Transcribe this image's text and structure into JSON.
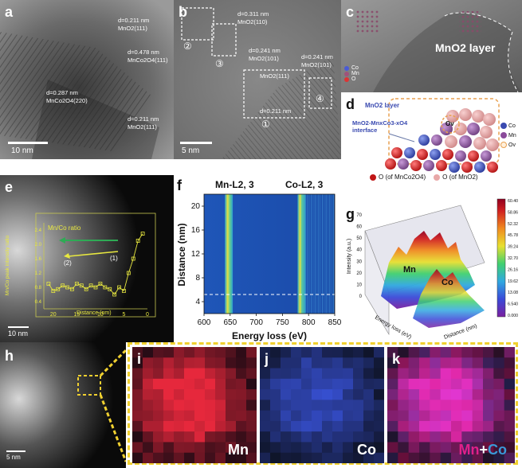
{
  "panels": {
    "a": {
      "label": "a",
      "scale": "10 nm",
      "annotations": [
        "d=0.211 nm",
        "MnO2(111)",
        "d=0.478 nm",
        "MnCo2O4(111)",
        "d=0.287 nm",
        "MnCo2O4(220)",
        "d=0.211 nm",
        "MnO2(111)"
      ]
    },
    "b": {
      "label": "b",
      "scale": "5 nm",
      "annotations": [
        "d=0.311 nm",
        "MnO2(110)",
        "d=0.241 nm",
        "MnO2(101)",
        "d=0.241 nm",
        "MnO2(101)",
        "MnO2(111)",
        "d=0.211 nm"
      ],
      "markers": [
        "①",
        "②",
        "③",
        "④"
      ]
    },
    "c": {
      "label": "c",
      "layer": "MnO2 layer",
      "legend": [
        "Co",
        "Mn",
        "O"
      ]
    },
    "d": {
      "label": "d",
      "layer": "MnO2 layer",
      "interface": "MnO2-MnxCo3-xO4 interface",
      "ov": "Ov",
      "legend_right": [
        "Co",
        "Mn",
        "Ov"
      ],
      "legend_bottom": [
        "O (of MnCo2O4)",
        "O (of MnO2)"
      ]
    },
    "e": {
      "label": "e",
      "scale": "10 nm",
      "inset_title": "Mn/Co ratio",
      "inset_ylabel": "Mn/Co peak intensity ratio",
      "inset_xlabel": "Distance (nm)",
      "arrow1": "(1)",
      "arrow2": "(2)",
      "xticks": [
        "20",
        "15",
        "10",
        "5",
        "0"
      ],
      "yticks": [
        "0.4",
        "0.8",
        "1.2",
        "1.6",
        "2.0",
        "2.4"
      ]
    },
    "f": {
      "label": "f",
      "mn_edge": "Mn-L2, 3",
      "co_edge": "Co-L2, 3",
      "xlabel": "Energy loss (eV)",
      "ylabel": "Distance (nm)",
      "xticks": [
        "600",
        "650",
        "700",
        "750",
        "800",
        "850"
      ],
      "yticks": [
        "4",
        "8",
        "12",
        "16",
        "20"
      ]
    },
    "g": {
      "label": "g",
      "zlabel": "Intensity (a.u.)",
      "xlabel": "Energy loss (eV)",
      "ylabel": "Distance (nm)",
      "mn": "Mn",
      "co": "Co",
      "zticks": [
        "0",
        "10",
        "20",
        "30",
        "40",
        "50",
        "60",
        "70"
      ],
      "colorbar": [
        "60.40",
        "58.86",
        "52.32",
        "45.78",
        "39.24",
        "32.70",
        "26.16",
        "19.62",
        "13.08",
        "6.540",
        "0.000"
      ]
    },
    "h": {
      "label": "h",
      "scale": "5 nm"
    },
    "i": {
      "label": "i",
      "element": "Mn"
    },
    "j": {
      "label": "j",
      "element": "Co"
    },
    "k": {
      "label": "k",
      "element_a": "Mn",
      "plus": "+",
      "element_b": "Co"
    }
  },
  "chart_data": [
    {
      "type": "line",
      "title": "Mn/Co ratio",
      "xlabel": "Distance (nm)",
      "ylabel": "Mn/Co peak intensity ratio",
      "xlim": [
        22,
        0
      ],
      "ylim": [
        0.2,
        2.6
      ],
      "series": [
        {
          "name": "Mn/Co ratio",
          "x": [
            21,
            20,
            19,
            18,
            17,
            16,
            15,
            14,
            13,
            12,
            11,
            10,
            9,
            8,
            7,
            6,
            5,
            4,
            3,
            2,
            1
          ],
          "y": [
            0.9,
            0.7,
            0.75,
            0.85,
            0.8,
            0.75,
            0.9,
            0.85,
            0.75,
            0.85,
            0.8,
            0.9,
            0.8,
            0.75,
            0.6,
            0.8,
            0.7,
            1.2,
            1.6,
            2.1,
            2.3
          ]
        }
      ]
    },
    {
      "type": "heatmap",
      "xlabel": "Energy loss (eV)",
      "ylabel": "Distance (nm)",
      "xlim": [
        600,
        850
      ],
      "ylim": [
        2,
        22
      ],
      "bands": [
        {
          "name": "Mn-L2, 3",
          "x": [
            640,
            655
          ]
        },
        {
          "name": "Co-L2, 3",
          "x": [
            779,
            795
          ]
        }
      ]
    }
  ]
}
